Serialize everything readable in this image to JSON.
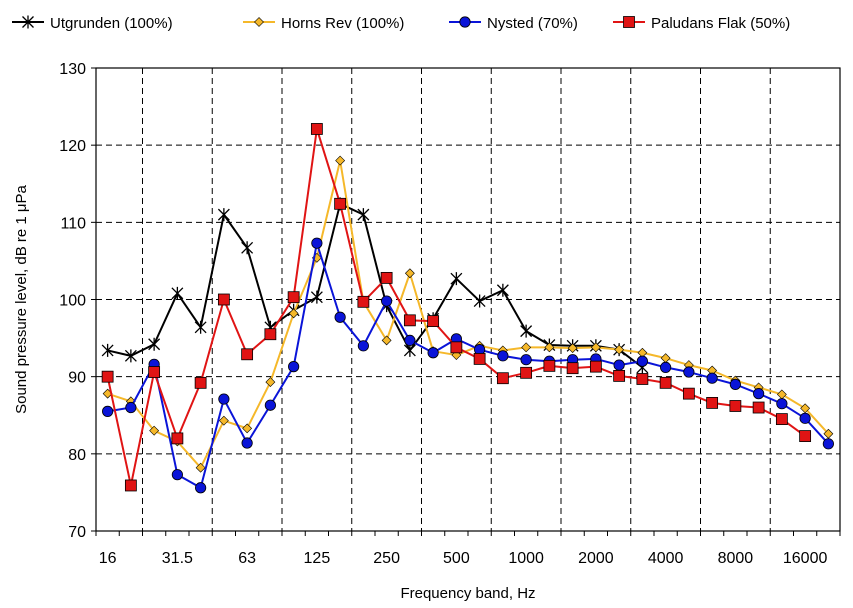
{
  "chart_data": {
    "type": "line",
    "xlabel": "Frequency band, Hz",
    "ylabel": "Sound pressure level, dB re 1 μPa",
    "ylim": [
      70,
      130
    ],
    "yticks": [
      70,
      80,
      90,
      100,
      110,
      120,
      130
    ],
    "grid": true,
    "legend_position": "top",
    "x_bands": [
      "16",
      "20",
      "25",
      "31.5",
      "40",
      "50",
      "63",
      "80",
      "100",
      "125",
      "160",
      "200",
      "250",
      "315",
      "400",
      "500",
      "630",
      "800",
      "1000",
      "1250",
      "1600",
      "2000",
      "2500",
      "3150",
      "4000",
      "5000",
      "6300",
      "8000",
      "10000",
      "12500",
      "16000",
      "20000"
    ],
    "x_tick_labels": [
      "16",
      "31.5",
      "63",
      "125",
      "250",
      "500",
      "1000",
      "2000",
      "4000",
      "8000",
      "16000"
    ],
    "series": [
      {
        "name": "Utgrunden (100%)",
        "color": "#000000",
        "marker": "asterisk",
        "values": [
          93.4,
          92.7,
          94.2,
          100.8,
          96.4,
          111.0,
          106.7,
          96.4,
          98.6,
          100.3,
          112.4,
          111.0,
          99.2,
          93.4,
          97.5,
          102.7,
          99.8,
          101.2,
          95.9,
          94.1,
          94.0,
          94.0,
          93.5,
          91.2,
          null,
          null,
          null,
          null,
          null,
          null,
          null,
          null
        ]
      },
      {
        "name": "Horns Rev (100%)",
        "color": "#f5b82a",
        "marker": "diamond",
        "values": [
          87.8,
          86.8,
          83.0,
          81.6,
          78.2,
          84.3,
          83.3,
          89.3,
          98.2,
          105.4,
          118.0,
          99.7,
          94.7,
          103.4,
          93.3,
          92.8,
          94.0,
          93.4,
          93.8,
          93.8,
          93.7,
          93.8,
          93.5,
          93.1,
          92.4,
          91.5,
          90.8,
          89.5,
          88.6,
          87.7,
          85.9,
          82.6
        ]
      },
      {
        "name": "Nysted (70%)",
        "color": "#0a14d8",
        "marker": "circle",
        "values": [
          85.5,
          86.0,
          91.6,
          77.3,
          75.6,
          87.1,
          81.4,
          86.3,
          91.3,
          107.3,
          97.7,
          94.0,
          99.8,
          94.7,
          93.1,
          94.9,
          93.5,
          92.7,
          92.2,
          92.0,
          92.2,
          92.3,
          91.5,
          92.0,
          91.2,
          90.6,
          89.8,
          89.0,
          87.8,
          86.5,
          84.6,
          81.3
        ]
      },
      {
        "name": "Paludans Flak (50%)",
        "color": "#e01414",
        "marker": "square",
        "values": [
          90.0,
          75.9,
          90.6,
          82.0,
          89.2,
          100.0,
          92.9,
          95.5,
          100.3,
          122.1,
          112.4,
          99.7,
          102.8,
          97.3,
          97.2,
          93.8,
          92.3,
          89.8,
          90.5,
          91.4,
          91.1,
          91.3,
          90.1,
          89.7,
          89.2,
          87.8,
          86.6,
          86.2,
          86.0,
          84.5,
          82.3,
          null
        ]
      }
    ]
  }
}
